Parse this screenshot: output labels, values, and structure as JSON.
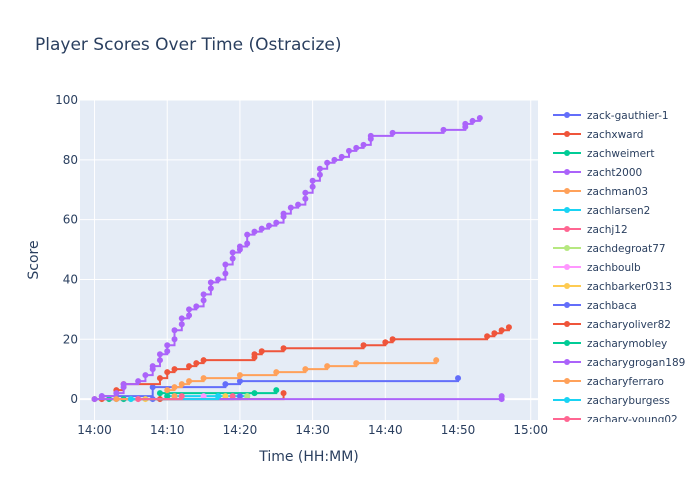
{
  "chart_data": {
    "type": "line",
    "title": "Player Scores Over Time (Ostracize)",
    "xlabel": "Time (HH:MM)",
    "ylabel": "Score",
    "x_unit": "HH:MM",
    "xlim": [
      "13:58",
      "15:01"
    ],
    "ylim": [
      -7,
      100
    ],
    "x_ticks": [
      "14:00",
      "14:10",
      "14:20",
      "14:30",
      "14:40",
      "14:50",
      "15:00"
    ],
    "y_ticks": [
      0,
      20,
      40,
      60,
      80,
      100
    ],
    "grid": true,
    "legend_position": "right",
    "line_shape": "step",
    "series": [
      {
        "name": "zack-gauthier-1",
        "color": "#636efa",
        "points": [
          [
            "14:00",
            0
          ],
          [
            "14:01",
            1
          ],
          [
            "14:08",
            4
          ],
          [
            "14:18",
            5
          ],
          [
            "14:20",
            6
          ],
          [
            "14:50",
            7
          ]
        ]
      },
      {
        "name": "zachxward",
        "color": "#ef553b",
        "points": [
          [
            "14:01",
            0
          ],
          [
            "14:03",
            3
          ],
          [
            "14:04",
            5
          ],
          [
            "14:09",
            7
          ],
          [
            "14:10",
            9
          ],
          [
            "14:11",
            10
          ],
          [
            "14:13",
            11
          ],
          [
            "14:14",
            12
          ],
          [
            "14:15",
            13
          ],
          [
            "14:22",
            14
          ],
          [
            "14:22",
            15
          ],
          [
            "14:23",
            16
          ],
          [
            "14:26",
            17
          ],
          [
            "14:37",
            18
          ],
          [
            "14:40",
            19
          ],
          [
            "14:41",
            20
          ],
          [
            "14:54",
            21
          ],
          [
            "14:55",
            22
          ],
          [
            "14:56",
            23
          ],
          [
            "14:57",
            24
          ]
        ]
      },
      {
        "name": "zachweimert",
        "color": "#00cc96",
        "points": [
          [
            "14:02",
            0
          ],
          [
            "14:09",
            2
          ],
          [
            "14:22",
            2
          ],
          [
            "14:25",
            3
          ]
        ]
      },
      {
        "name": "zacht2000",
        "color": "#ab63fa",
        "points": [
          [
            "14:01",
            1
          ],
          [
            "14:03",
            2
          ],
          [
            "14:04",
            4
          ],
          [
            "14:04",
            5
          ],
          [
            "14:06",
            6
          ],
          [
            "14:07",
            8
          ],
          [
            "14:08",
            10
          ],
          [
            "14:08",
            11
          ],
          [
            "14:09",
            13
          ],
          [
            "14:09",
            15
          ],
          [
            "14:10",
            16
          ],
          [
            "14:10",
            18
          ],
          [
            "14:11",
            20
          ],
          [
            "14:11",
            23
          ],
          [
            "14:12",
            25
          ],
          [
            "14:12",
            27
          ],
          [
            "14:13",
            28
          ],
          [
            "14:13",
            30
          ],
          [
            "14:14",
            31
          ],
          [
            "14:15",
            33
          ],
          [
            "14:15",
            35
          ],
          [
            "14:16",
            37
          ],
          [
            "14:16",
            39
          ],
          [
            "14:17",
            40
          ],
          [
            "14:18",
            42
          ],
          [
            "14:18",
            45
          ],
          [
            "14:19",
            47
          ],
          [
            "14:19",
            49
          ],
          [
            "14:20",
            50
          ],
          [
            "14:20",
            51
          ],
          [
            "14:21",
            52
          ],
          [
            "14:21",
            55
          ],
          [
            "14:22",
            56
          ],
          [
            "14:23",
            57
          ],
          [
            "14:24",
            58
          ],
          [
            "14:25",
            59
          ],
          [
            "14:26",
            61
          ],
          [
            "14:26",
            62
          ],
          [
            "14:27",
            64
          ],
          [
            "14:28",
            65
          ],
          [
            "14:29",
            67
          ],
          [
            "14:29",
            69
          ],
          [
            "14:30",
            71
          ],
          [
            "14:30",
            73
          ],
          [
            "14:31",
            75
          ],
          [
            "14:31",
            77
          ],
          [
            "14:32",
            79
          ],
          [
            "14:33",
            80
          ],
          [
            "14:34",
            81
          ],
          [
            "14:35",
            83
          ],
          [
            "14:36",
            84
          ],
          [
            "14:37",
            85
          ],
          [
            "14:38",
            87
          ],
          [
            "14:38",
            88
          ],
          [
            "14:41",
            89
          ],
          [
            "14:48",
            90
          ],
          [
            "14:51",
            91
          ],
          [
            "14:51",
            92
          ],
          [
            "14:52",
            93
          ],
          [
            "14:53",
            94
          ]
        ]
      },
      {
        "name": "zachman03",
        "color": "#ffa15a",
        "points": [
          [
            "14:00",
            0
          ],
          [
            "14:10",
            3
          ],
          [
            "14:11",
            4
          ],
          [
            "14:12",
            5
          ],
          [
            "14:13",
            6
          ],
          [
            "14:15",
            7
          ],
          [
            "14:20",
            8
          ],
          [
            "14:25",
            9
          ],
          [
            "14:29",
            10
          ],
          [
            "14:32",
            11
          ],
          [
            "14:36",
            12
          ],
          [
            "14:47",
            13
          ]
        ]
      },
      {
        "name": "zachlarsen2",
        "color": "#19d3f3",
        "points": [
          [
            "14:03",
            0
          ],
          [
            "14:10",
            1
          ],
          [
            "14:17",
            1
          ],
          [
            "14:21",
            1
          ]
        ]
      },
      {
        "name": "zachj12",
        "color": "#ff6692",
        "points": [
          [
            "14:04",
            0
          ],
          [
            "14:19",
            1
          ]
        ]
      },
      {
        "name": "zachdegroat77",
        "color": "#b6e880",
        "points": [
          [
            "14:05",
            0
          ],
          [
            "14:21",
            1
          ]
        ]
      },
      {
        "name": "zachboulb",
        "color": "#ff97ff",
        "points": [
          [
            "14:06",
            0
          ],
          [
            "14:15",
            1
          ]
        ]
      },
      {
        "name": "zachbarker0313",
        "color": "#fecb52",
        "points": [
          [
            "14:07",
            0
          ],
          [
            "14:18",
            1
          ]
        ]
      },
      {
        "name": "zachbaca",
        "color": "#636efa",
        "points": [
          [
            "14:08",
            0
          ],
          [
            "14:20",
            1
          ]
        ]
      },
      {
        "name": "zacharyoliver82",
        "color": "#ef553b",
        "points": [
          [
            "14:09",
            0
          ],
          [
            "14:26",
            2
          ]
        ]
      },
      {
        "name": "zacharymobley",
        "color": "#00cc96",
        "points": [
          [
            "14:04",
            0
          ],
          [
            "14:10",
            1
          ]
        ]
      },
      {
        "name": "zacharygrogan189",
        "color": "#ab63fa",
        "points": [
          [
            "14:00",
            0
          ],
          [
            "14:56",
            0
          ],
          [
            "14:56",
            1
          ]
        ]
      },
      {
        "name": "zacharyferraro",
        "color": "#ffa15a",
        "points": [
          [
            "14:03",
            0
          ],
          [
            "14:11",
            1
          ]
        ]
      },
      {
        "name": "zacharyburgess",
        "color": "#19d3f3",
        "points": [
          [
            "14:05",
            0
          ],
          [
            "14:17",
            1
          ]
        ]
      },
      {
        "name": "zachary-young02",
        "color": "#ff6692",
        "points": [
          [
            "14:06",
            0
          ],
          [
            "14:12",
            1
          ]
        ]
      }
    ]
  }
}
